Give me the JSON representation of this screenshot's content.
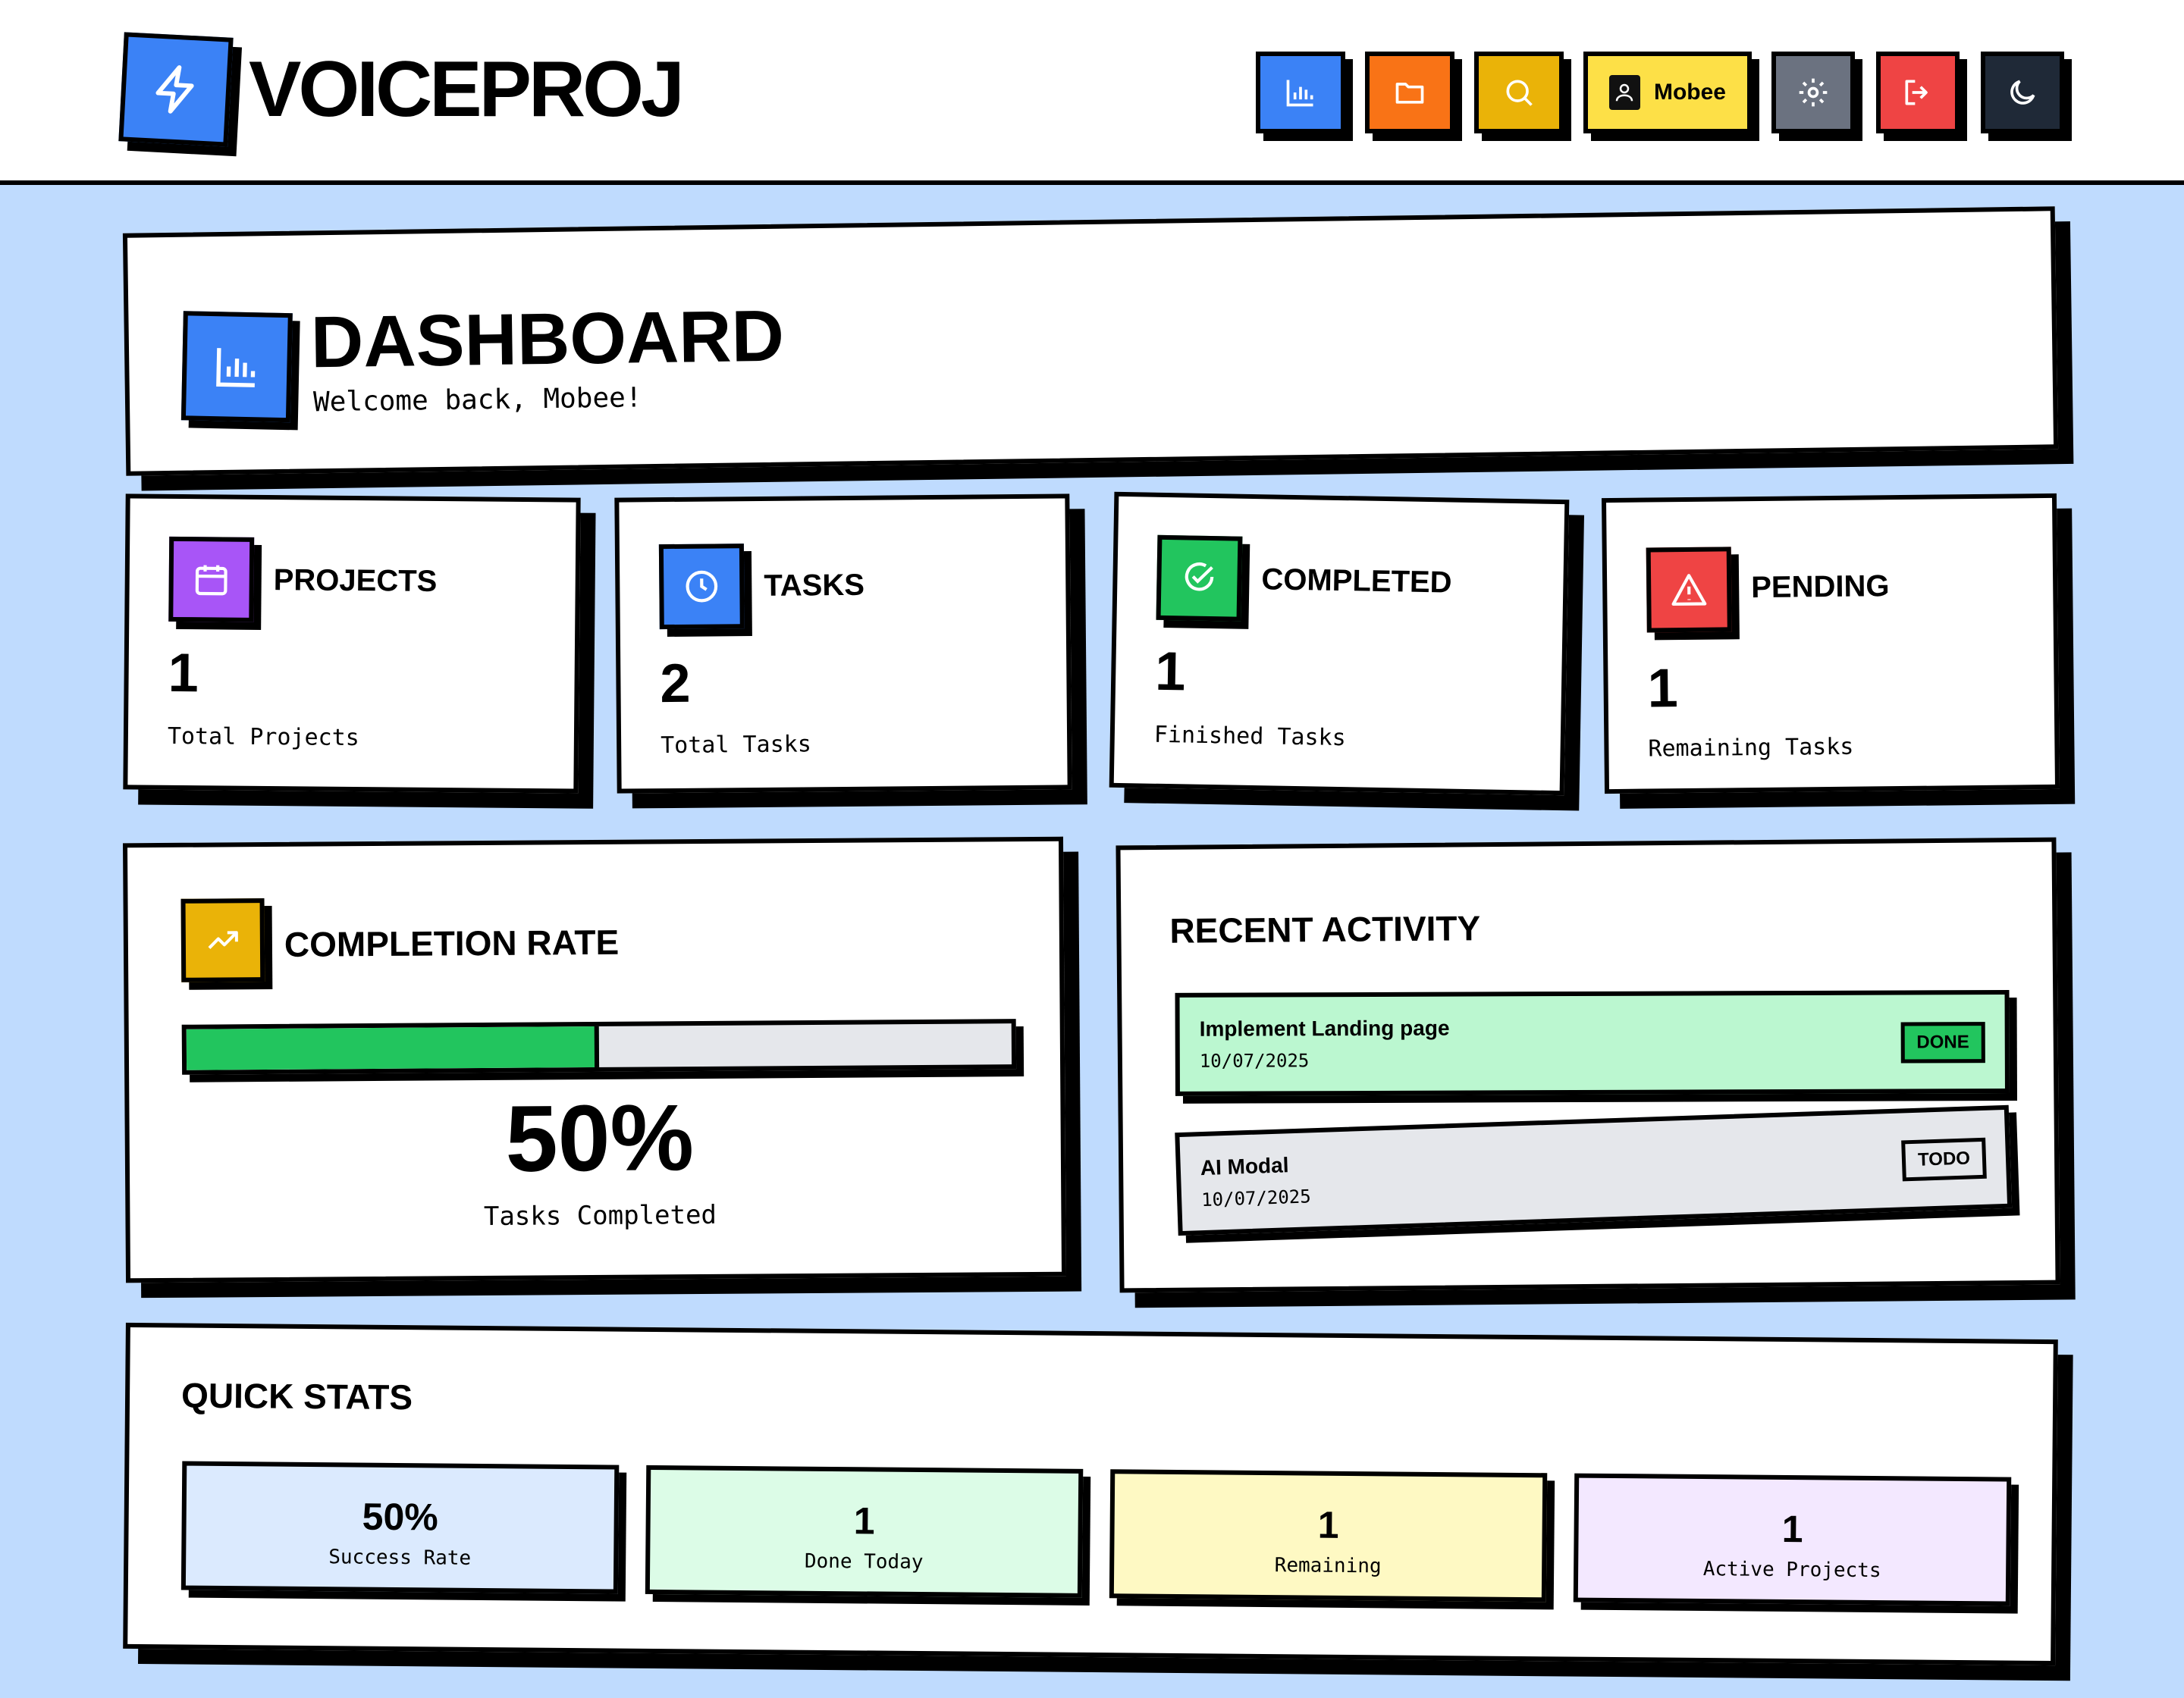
{
  "app": {
    "name": "VOICEPROJ"
  },
  "nav": {
    "user_label": "Mobee"
  },
  "colors": {
    "blue": "#3b82f6",
    "orange": "#f97316",
    "amber": "#eab308",
    "yellow": "#fde047",
    "gray": "#6b7280",
    "red": "#ef4444",
    "dark": "#1f2937",
    "purple": "#a855f7",
    "green": "#22c55e",
    "page_bg": "#bfdbfe"
  },
  "dashboard": {
    "title": "DASHBOARD",
    "subtitle": "Welcome back, Mobee!"
  },
  "stats": [
    {
      "label": "PROJECTS",
      "value": "1",
      "sub": "Total Projects",
      "icon": "calendar-icon"
    },
    {
      "label": "TASKS",
      "value": "2",
      "sub": "Total Tasks",
      "icon": "clock-icon"
    },
    {
      "label": "COMPLETED",
      "value": "1",
      "sub": "Finished Tasks",
      "icon": "check-circle-icon"
    },
    {
      "label": "PENDING",
      "value": "1",
      "sub": "Remaining Tasks",
      "icon": "warning-icon"
    }
  ],
  "completion": {
    "title": "COMPLETION RATE",
    "percent_label": "50%",
    "fraction": 0.5,
    "sub": "Tasks Completed"
  },
  "activity": {
    "title": "RECENT ACTIVITY",
    "items": [
      {
        "title": "Implement Landing page",
        "date": "10/07/2025",
        "status": "DONE"
      },
      {
        "title": "AI Modal",
        "date": "10/07/2025",
        "status": "TODO"
      }
    ]
  },
  "quick_stats": {
    "title": "QUICK STATS",
    "items": [
      {
        "value": "50%",
        "label": "Success Rate"
      },
      {
        "value": "1",
        "label": "Done Today"
      },
      {
        "value": "1",
        "label": "Remaining"
      },
      {
        "value": "1",
        "label": "Active Projects"
      }
    ]
  }
}
